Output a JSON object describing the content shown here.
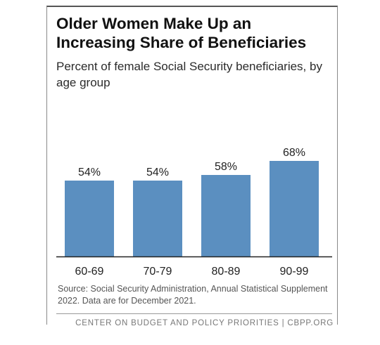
{
  "header": {
    "title": "Older Women Make Up an Increasing Share of Beneficiaries",
    "subtitle": "Percent of female Social Security beneficiaries, by age group"
  },
  "chart_data": {
    "type": "bar",
    "title": "Older Women Make Up an Increasing Share of Beneficiaries",
    "subtitle": "Percent of female Social Security beneficiaries, by age group",
    "categories": [
      "60-69",
      "70-79",
      "80-89",
      "90-99"
    ],
    "values": [
      54,
      54,
      58,
      68
    ],
    "value_labels": [
      "54%",
      "54%",
      "58%",
      "68%"
    ],
    "ylim": [
      0,
      100
    ],
    "grid": false,
    "legend": "none",
    "bar_color": "#5b8fc0"
  },
  "source_note": "Source: Social Security Administration, Annual Statistical Supplement 2022. Data are for December 2021.",
  "footer": "CENTER ON BUDGET AND POLICY PRIORITIES | CBPP.ORG"
}
